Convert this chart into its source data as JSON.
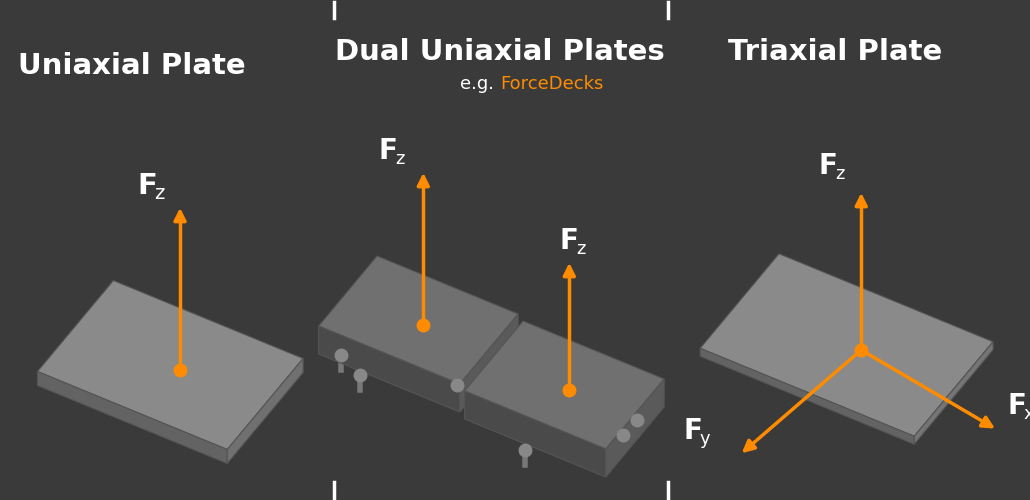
{
  "bg_color": "#3a3a3a",
  "orange": "#FF8C00",
  "white": "#FFFFFF",
  "title1": "Uniaxial Plate",
  "title2": "Dual Uniaxial Plates",
  "subtitle2_plain": "e.g. ",
  "subtitle2_orange": "ForceDecks",
  "title3": "Triaxial Plate",
  "title_fontsize": 21,
  "subtitle_fontsize": 13,
  "tick_color": "#bbbbbb"
}
